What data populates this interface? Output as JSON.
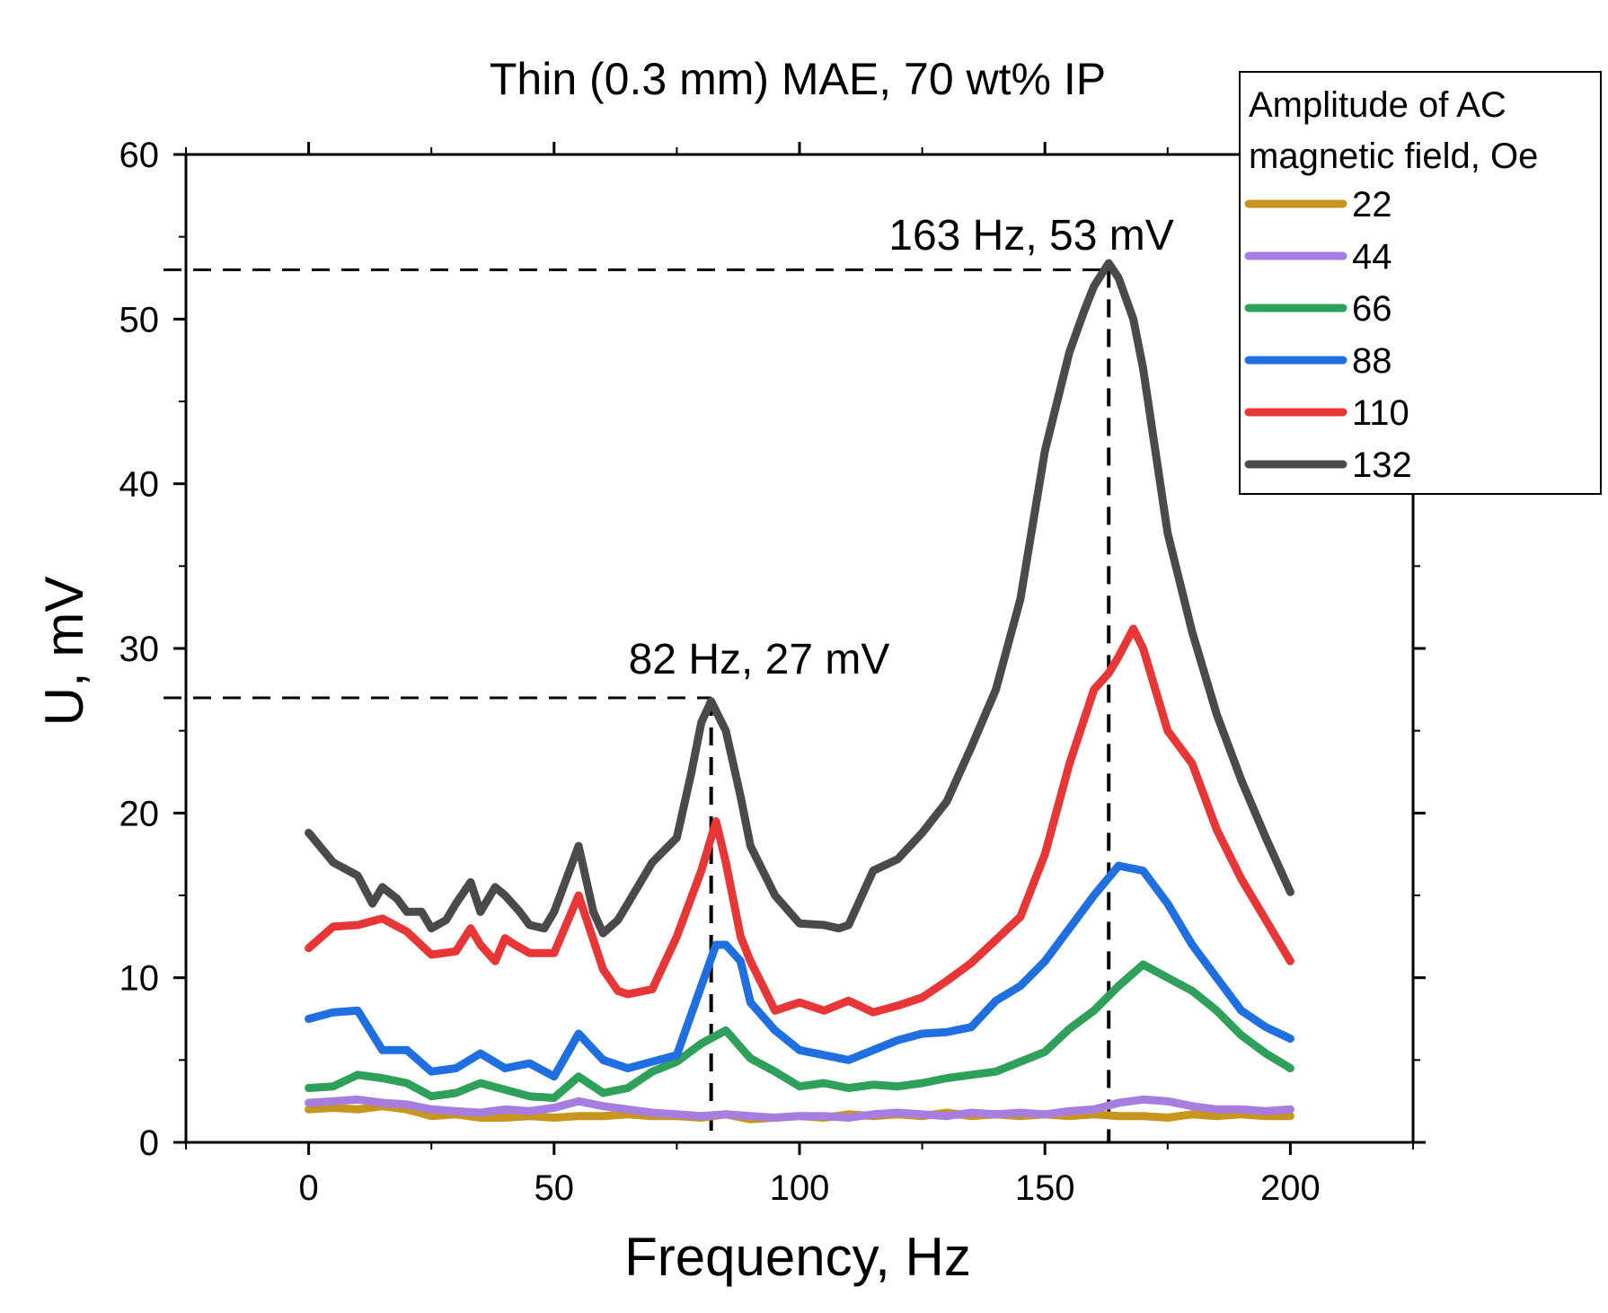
{
  "chart_data": {
    "type": "line",
    "title": "Thin (0.3 mm) MAE, 70 wt% IP",
    "xlabel": "Frequency, Hz",
    "ylabel": "U, mV",
    "xlim": [
      -25,
      225
    ],
    "ylim": [
      0,
      60
    ],
    "xticks": [
      0,
      50,
      100,
      150,
      200
    ],
    "yticks": [
      0,
      10,
      20,
      30,
      40,
      50,
      60
    ],
    "legend": {
      "title": "Amplitude of AC magnetic field, Oe",
      "title_lines": [
        "Amplitude of AC",
        "magnetic field, Oe"
      ],
      "placement": "top-right"
    },
    "annotations": [
      {
        "text": "82 Hz, 27 mV",
        "x": 82,
        "y": 27
      },
      {
        "text": "163 Hz, 53 mV",
        "x": 163,
        "y": 53
      }
    ],
    "series": [
      {
        "name": "22",
        "color": "#c8961e",
        "x": [
          0,
          5,
          10,
          15,
          20,
          25,
          30,
          35,
          40,
          45,
          50,
          55,
          60,
          65,
          70,
          75,
          80,
          85,
          90,
          95,
          100,
          105,
          110,
          115,
          120,
          125,
          130,
          135,
          140,
          145,
          150,
          155,
          160,
          165,
          170,
          175,
          180,
          185,
          190,
          195,
          200
        ],
        "values": [
          2,
          2.1,
          2,
          2.2,
          2,
          1.6,
          1.7,
          1.5,
          1.5,
          1.6,
          1.5,
          1.6,
          1.6,
          1.7,
          1.6,
          1.6,
          1.5,
          1.7,
          1.4,
          1.5,
          1.6,
          1.5,
          1.7,
          1.6,
          1.7,
          1.6,
          1.8,
          1.6,
          1.7,
          1.6,
          1.7,
          1.6,
          1.7,
          1.6,
          1.6,
          1.5,
          1.7,
          1.6,
          1.7,
          1.6,
          1.6
        ]
      },
      {
        "name": "44",
        "color": "#a77ee0",
        "x": [
          0,
          5,
          10,
          15,
          20,
          25,
          30,
          35,
          40,
          45,
          50,
          55,
          60,
          65,
          70,
          75,
          80,
          85,
          90,
          95,
          100,
          105,
          110,
          115,
          120,
          125,
          130,
          135,
          140,
          145,
          150,
          155,
          160,
          165,
          170,
          175,
          180,
          185,
          190,
          195,
          200
        ],
        "values": [
          2.4,
          2.5,
          2.6,
          2.4,
          2.3,
          2,
          1.9,
          1.8,
          2,
          1.9,
          2.1,
          2.5,
          2.2,
          2,
          1.8,
          1.7,
          1.6,
          1.7,
          1.6,
          1.5,
          1.6,
          1.6,
          1.5,
          1.7,
          1.8,
          1.7,
          1.6,
          1.8,
          1.7,
          1.8,
          1.7,
          1.9,
          2,
          2.4,
          2.6,
          2.5,
          2.2,
          2,
          2,
          1.9,
          2
        ]
      },
      {
        "name": "66",
        "color": "#2fa05a",
        "x": [
          0,
          5,
          10,
          15,
          20,
          25,
          30,
          35,
          40,
          45,
          50,
          55,
          60,
          65,
          70,
          75,
          80,
          85,
          90,
          95,
          100,
          105,
          110,
          115,
          120,
          125,
          130,
          135,
          140,
          145,
          150,
          155,
          160,
          165,
          170,
          175,
          180,
          185,
          190,
          195,
          200
        ],
        "values": [
          3.3,
          3.4,
          4.1,
          3.9,
          3.6,
          2.8,
          3,
          3.6,
          3.2,
          2.8,
          2.7,
          4,
          3,
          3.3,
          4.3,
          4.9,
          6,
          6.8,
          5.1,
          4.3,
          3.4,
          3.6,
          3.3,
          3.5,
          3.4,
          3.6,
          3.9,
          4.1,
          4.3,
          4.9,
          5.5,
          6.9,
          8,
          9.5,
          10.8,
          10,
          9.2,
          8,
          6.5,
          5.4,
          4.5
        ]
      },
      {
        "name": "88",
        "color": "#1f6fe0",
        "x": [
          0,
          5,
          10,
          15,
          20,
          25,
          30,
          35,
          40,
          45,
          50,
          55,
          60,
          65,
          70,
          75,
          80,
          83,
          85,
          88,
          90,
          95,
          100,
          105,
          110,
          115,
          120,
          125,
          130,
          135,
          140,
          145,
          150,
          155,
          160,
          165,
          170,
          175,
          180,
          185,
          190,
          195,
          200
        ],
        "values": [
          7.5,
          7.9,
          8,
          5.6,
          5.6,
          4.3,
          4.5,
          5.4,
          4.5,
          4.8,
          4,
          6.6,
          5,
          4.5,
          4.9,
          5.3,
          9.5,
          12,
          12,
          11,
          8.5,
          6.8,
          5.6,
          5.3,
          5,
          5.6,
          6.2,
          6.6,
          6.7,
          7,
          8.6,
          9.5,
          11,
          13,
          15,
          16.8,
          16.5,
          14.5,
          12,
          10,
          8,
          7,
          6.3
        ]
      },
      {
        "name": "110",
        "color": "#e83535",
        "x": [
          0,
          5,
          10,
          15,
          20,
          25,
          30,
          33,
          35,
          38,
          40,
          42,
          45,
          50,
          55,
          60,
          63,
          65,
          70,
          75,
          80,
          83,
          85,
          88,
          90,
          95,
          100,
          105,
          110,
          115,
          120,
          125,
          130,
          135,
          140,
          145,
          150,
          155,
          160,
          163,
          165,
          168,
          170,
          175,
          180,
          185,
          190,
          195,
          200
        ],
        "values": [
          11.8,
          13.1,
          13.2,
          13.6,
          12.8,
          11.4,
          11.6,
          13,
          12,
          11,
          12.4,
          12,
          11.5,
          11.5,
          15,
          10.5,
          9.2,
          9,
          9.3,
          12.5,
          16.5,
          19.5,
          17,
          12.5,
          11,
          8,
          8.5,
          8,
          8.6,
          7.9,
          8.3,
          8.8,
          9.8,
          10.9,
          12.3,
          13.7,
          17.5,
          23,
          27.5,
          28.5,
          29.5,
          31.2,
          30,
          25,
          23,
          19,
          16,
          13.5,
          11
        ]
      },
      {
        "name": "132",
        "color": "#4a4a4a",
        "x": [
          0,
          5,
          10,
          13,
          15,
          18,
          20,
          23,
          25,
          28,
          30,
          33,
          35,
          38,
          40,
          43,
          45,
          48,
          50,
          55,
          58,
          60,
          63,
          65,
          70,
          75,
          78,
          80,
          82,
          85,
          88,
          90,
          95,
          100,
          105,
          108,
          110,
          115,
          120,
          125,
          130,
          135,
          140,
          145,
          150,
          155,
          158,
          160,
          163,
          165,
          168,
          170,
          175,
          180,
          185,
          190,
          195,
          200
        ],
        "values": [
          18.8,
          17,
          16.2,
          14.5,
          15.5,
          14.8,
          14,
          14,
          13,
          13.5,
          14.5,
          15.8,
          14,
          15.5,
          15,
          14,
          13.2,
          13,
          14,
          18,
          14,
          12.7,
          13.5,
          14.5,
          17,
          18.5,
          22.5,
          25.5,
          26.8,
          25,
          21,
          18,
          15,
          13.3,
          13.2,
          13,
          13.2,
          16.5,
          17.2,
          18.8,
          20.7,
          24,
          27.5,
          33,
          42,
          48,
          50.5,
          52,
          53.4,
          52.5,
          50,
          47,
          37,
          31,
          26,
          22,
          18.5,
          15.2
        ]
      }
    ]
  }
}
